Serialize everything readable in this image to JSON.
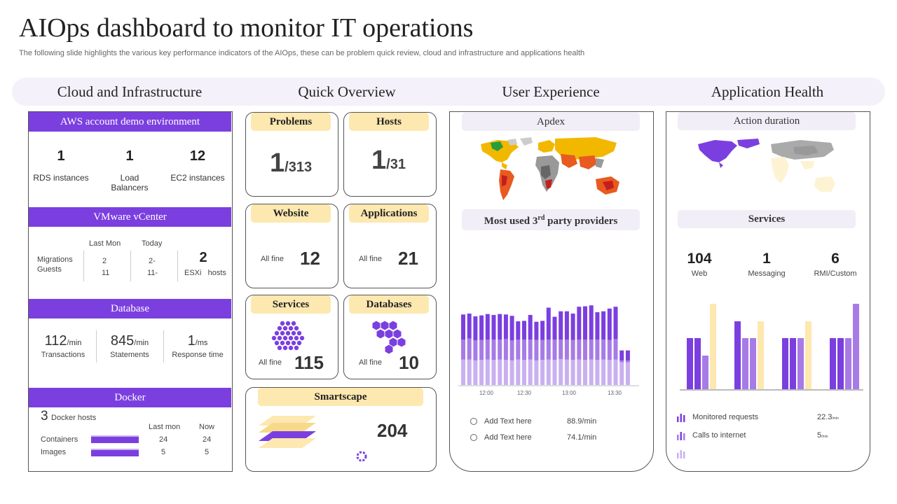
{
  "header": {
    "title": "AIOps dashboard to monitor IT operations",
    "subtitle": "The following slide highlights the various key performance indicators of the AIOps, these can be problem quick review, cloud and infrastructure and applications health"
  },
  "columns": [
    "Cloud and Infrastructure",
    "Quick Overview",
    "User Experience",
    "Application Health"
  ],
  "cloud": {
    "aws": {
      "title": "AWS account demo environment",
      "stats": [
        {
          "value": "1",
          "label": "RDS instances"
        },
        {
          "value": "1",
          "label": "Load Balancers"
        },
        {
          "value": "12",
          "label": "EC2 instances"
        }
      ]
    },
    "vmware": {
      "title": "VMware vCenter",
      "row_labels": [
        "Migrations",
        "Guests"
      ],
      "col_last": "Last Mon",
      "col_today": "Today",
      "last_values": [
        "2",
        "11"
      ],
      "today_values": [
        "2-",
        "11-"
      ],
      "esxi_value": "2",
      "esxi_label": "ESXi   hosts"
    },
    "database": {
      "title": "Database",
      "stats": [
        {
          "value": "112",
          "unit": "/min",
          "label": "Transactions"
        },
        {
          "value": "845",
          "unit": "/min",
          "label": "Statements"
        },
        {
          "value": "1",
          "unit": "/ms",
          "label": "Response time"
        }
      ]
    },
    "docker": {
      "title": "Docker",
      "hosts_value": "3",
      "hosts_label": "Docker hosts",
      "col_last": "Last mon",
      "col_now": "Now",
      "rows": [
        {
          "label": "Containers",
          "last": "24",
          "now": "24"
        },
        {
          "label": "Images",
          "last": "5",
          "now": "5"
        }
      ]
    }
  },
  "overview": {
    "problems": {
      "label": "Problems",
      "value": "1",
      "total": "/313"
    },
    "hosts": {
      "label": "Hosts",
      "value": "1",
      "total": "/31"
    },
    "website": {
      "label": "Website",
      "status": "All fine",
      "value": "12"
    },
    "applications": {
      "label": "Applications",
      "status": "All fine",
      "value": "21"
    },
    "services": {
      "label": "Services",
      "status": "All fine",
      "value": "115"
    },
    "databases": {
      "label": "Databases",
      "status": "All fine",
      "value": "10"
    },
    "smartscape": {
      "label": "Smartscape",
      "value": "204"
    }
  },
  "user_experience": {
    "apdex_title": "Apdex",
    "providers_title_a": "Most used 3",
    "providers_title_sup": "rd",
    "providers_title_b": " party providers",
    "legend": [
      {
        "label": "Add Text here",
        "value": "88.9/min"
      },
      {
        "label": "Add Text here",
        "value": "74.1/min"
      }
    ]
  },
  "app_health": {
    "action_title": "Action duration",
    "services_title": "Services",
    "stats": [
      {
        "value": "104",
        "label": "Web"
      },
      {
        "value": "1",
        "label": "Messaging"
      },
      {
        "value": "6",
        "label": "RMI/Custom"
      }
    ],
    "legend": [
      {
        "label": "Monitored requests",
        "value": "22.3",
        "unit": "/min"
      },
      {
        "label": "Calls to internet",
        "value": "5",
        "unit": "/min"
      }
    ]
  },
  "colors": {
    "purple": "#7b3fe0",
    "mid_purple": "#a77be6",
    "light_purple": "#c9b0f0",
    "cream": "#fde8b0"
  },
  "chart_data": [
    {
      "type": "bar",
      "title": "Most used 3rd party providers",
      "stacked": true,
      "x_ticks": [
        "12:00",
        "12:30",
        "13:00",
        "13:30"
      ],
      "series": [
        {
          "name": "bottom",
          "values": [
            56,
            56,
            54,
            55,
            56,
            55,
            56,
            55,
            54,
            56,
            55,
            56,
            54,
            55,
            56,
            55,
            57,
            56,
            55,
            56,
            55,
            56,
            55,
            56,
            55,
            56,
            50,
            50
          ]
        },
        {
          "name": "middle",
          "values": [
            44,
            46,
            44,
            44,
            44,
            45,
            44,
            46,
            44,
            44,
            45,
            44,
            45,
            44,
            44,
            45,
            43,
            44,
            44,
            44,
            45,
            44,
            45,
            44,
            44,
            45,
            4,
            4
          ]
        },
        {
          "name": "top",
          "values": [
            55,
            55,
            53,
            54,
            56,
            54,
            56,
            54,
            54,
            40,
            41,
            54,
            40,
            42,
            70,
            50,
            62,
            62,
            58,
            72,
            73,
            75,
            60,
            62,
            69,
            71,
            22,
            22
          ]
        }
      ]
    },
    {
      "type": "bar",
      "title": "Application Health services",
      "groups": 4,
      "series": [
        {
          "name": "s1",
          "values": [
            73,
            97,
            73,
            73
          ]
        },
        {
          "name": "s2",
          "values": [
            73,
            73,
            73,
            73
          ]
        },
        {
          "name": "s3",
          "values": [
            48,
            73,
            73,
            73
          ]
        },
        {
          "name": "s4",
          "values": [
            122,
            97,
            97,
            122
          ]
        }
      ]
    }
  ]
}
